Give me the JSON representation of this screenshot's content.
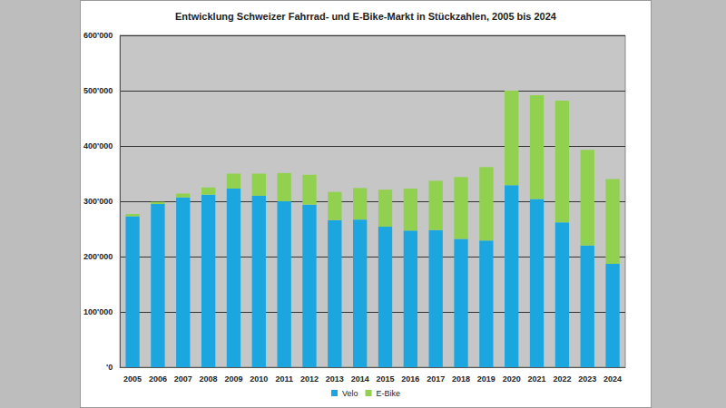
{
  "chart_data": {
    "type": "bar",
    "title": "Entwicklung Schweizer Fahrrad- und E-Bike-Markt in Stückzahlen, 2005 bis 2024",
    "categories": [
      "2005",
      "2006",
      "2007",
      "2008",
      "2009",
      "2010",
      "2011",
      "2012",
      "2013",
      "2014",
      "2015",
      "2016",
      "2017",
      "2018",
      "2019",
      "2020",
      "2021",
      "2022",
      "2023",
      "2024"
    ],
    "series": [
      {
        "name": "Velo",
        "color": "#1ba6e0",
        "values": [
          273000,
          295000,
          307000,
          312000,
          323000,
          310000,
          300000,
          294000,
          266000,
          267000,
          254000,
          247000,
          248000,
          232000,
          229000,
          329000,
          304000,
          262000,
          220000,
          187000
        ]
      },
      {
        "name": "E-Bike",
        "color": "#92d050",
        "values": [
          4000,
          4000,
          7000,
          13000,
          27000,
          40000,
          51000,
          54000,
          51000,
          57000,
          67000,
          76000,
          89000,
          112000,
          133000,
          171000,
          188000,
          220000,
          173000,
          153000
        ]
      }
    ],
    "stacked": true,
    "ylim": [
      0,
      600000
    ],
    "yticks": [
      {
        "value": 0,
        "label": "'0"
      },
      {
        "value": 100000,
        "label": "100'000"
      },
      {
        "value": 200000,
        "label": "200'000"
      },
      {
        "value": 300000,
        "label": "300'000"
      },
      {
        "value": 400000,
        "label": "400'000"
      },
      {
        "value": 500000,
        "label": "500'000"
      },
      {
        "value": 600000,
        "label": "600'000"
      }
    ],
    "grid": true,
    "legend": "bottom"
  }
}
